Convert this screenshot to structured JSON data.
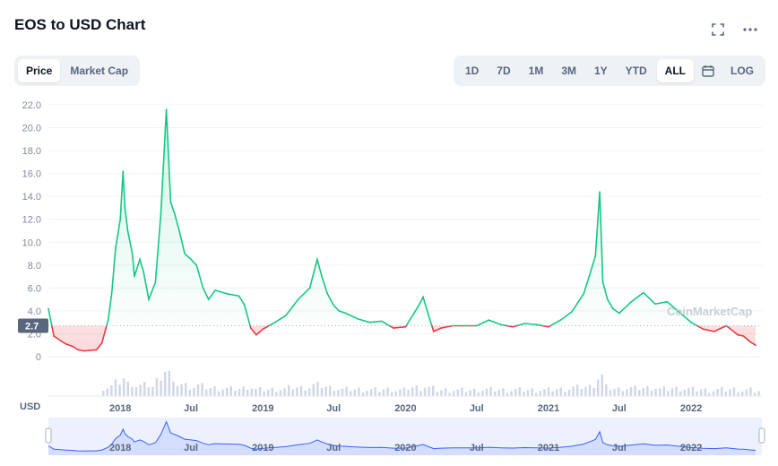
{
  "header": {
    "title": "EOS to USD Chart"
  },
  "toggle": {
    "tabs": [
      {
        "label": "Price",
        "active": true
      },
      {
        "label": "Market Cap",
        "active": false
      }
    ]
  },
  "ranges": {
    "items": [
      {
        "label": "1D",
        "active": false
      },
      {
        "label": "7D",
        "active": false
      },
      {
        "label": "1M",
        "active": false
      },
      {
        "label": "3M",
        "active": false
      },
      {
        "label": "1Y",
        "active": false
      },
      {
        "label": "YTD",
        "active": false
      },
      {
        "label": "ALL",
        "active": true
      }
    ],
    "log_label": "LOG"
  },
  "icons": {
    "fullscreen": "fullscreen-icon",
    "more": "more-icon",
    "calendar": "calendar-icon"
  },
  "currency_label": "USD",
  "watermark": "CoinMarketCap",
  "colors": {
    "up": "#16c784",
    "down": "#ea3943",
    "navigator": "#3861fb",
    "volume": "#cfd6e4"
  },
  "chart_data": {
    "type": "line",
    "reference_price": 2.7,
    "reference_label": "2.7",
    "ylim": [
      0,
      22
    ],
    "y_ticks": [
      "0",
      "2.0",
      "4.0",
      "6.0",
      "8.0",
      "10.0",
      "12.0",
      "14.0",
      "16.0",
      "18.0",
      "20.0",
      "22.0"
    ],
    "x_ticks": [
      "2018",
      "Jul",
      "2019",
      "Jul",
      "2020",
      "Jul",
      "2021",
      "Jul",
      "2022"
    ],
    "navigator_ticks": [
      "2018",
      "Jul",
      "2019",
      "Jul",
      "2020",
      "Jul",
      "2021",
      "Jul",
      "2022"
    ],
    "series": [
      {
        "x": [
          "2017-07-01",
          "2017-07-15",
          "2017-08-01",
          "2017-08-15",
          "2017-09-01",
          "2017-09-15",
          "2017-10-01",
          "2017-10-15",
          "2017-11-01",
          "2017-11-15",
          "2017-12-01",
          "2017-12-10",
          "2017-12-20",
          "2018-01-01",
          "2018-01-08",
          "2018-01-13",
          "2018-01-20",
          "2018-02-01",
          "2018-02-06",
          "2018-02-20",
          "2018-03-01",
          "2018-03-15",
          "2018-04-01",
          "2018-04-15",
          "2018-04-29",
          "2018-05-10",
          "2018-05-20",
          "2018-06-01",
          "2018-06-15",
          "2018-07-01",
          "2018-07-15",
          "2018-08-01",
          "2018-08-15",
          "2018-09-01",
          "2018-10-01",
          "2018-11-01",
          "2018-11-15",
          "2018-12-01",
          "2018-12-15",
          "2019-01-01",
          "2019-02-01",
          "2019-03-01",
          "2019-04-01",
          "2019-05-01",
          "2019-05-20",
          "2019-06-01",
          "2019-06-15",
          "2019-07-01",
          "2019-07-15",
          "2019-08-01",
          "2019-09-01",
          "2019-10-01",
          "2019-11-01",
          "2019-12-01",
          "2020-01-01",
          "2020-02-01",
          "2020-02-15",
          "2020-03-01",
          "2020-03-13",
          "2020-04-01",
          "2020-05-01",
          "2020-06-01",
          "2020-07-01",
          "2020-08-01",
          "2020-09-01",
          "2020-10-01",
          "2020-11-01",
          "2020-12-01",
          "2021-01-01",
          "2021-02-01",
          "2021-03-01",
          "2021-04-01",
          "2021-04-15",
          "2021-05-01",
          "2021-05-12",
          "2021-05-20",
          "2021-06-01",
          "2021-06-15",
          "2021-07-01",
          "2021-08-01",
          "2021-09-01",
          "2021-10-01",
          "2021-11-01",
          "2021-12-01",
          "2022-01-01",
          "2022-02-01",
          "2022-03-01",
          "2022-04-01",
          "2022-05-01",
          "2022-05-15",
          "2022-06-01",
          "2022-06-15"
        ],
        "values": [
          4.2,
          1.8,
          1.4,
          1.1,
          0.9,
          0.6,
          0.5,
          0.55,
          0.6,
          1.2,
          3.2,
          5.5,
          9.5,
          12.0,
          16.2,
          13.0,
          11.0,
          9.0,
          7.0,
          8.5,
          7.5,
          5.0,
          6.5,
          12.5,
          21.6,
          13.5,
          12.5,
          11.0,
          9.0,
          8.5,
          8.0,
          6.0,
          5.0,
          5.8,
          5.5,
          5.3,
          4.5,
          2.5,
          1.9,
          2.4,
          3.0,
          3.6,
          5.0,
          6.0,
          8.5,
          7.0,
          5.5,
          4.5,
          4.0,
          3.8,
          3.3,
          3.0,
          3.1,
          2.5,
          2.6,
          4.3,
          5.2,
          3.5,
          2.2,
          2.5,
          2.7,
          2.7,
          2.7,
          3.2,
          2.8,
          2.6,
          2.9,
          2.8,
          2.6,
          3.2,
          3.9,
          5.5,
          7.0,
          8.8,
          14.4,
          6.5,
          5.0,
          4.2,
          3.8,
          4.8,
          5.6,
          4.6,
          4.8,
          3.9,
          3.0,
          2.4,
          2.2,
          2.7,
          1.9,
          1.8,
          1.3,
          1.0
        ]
      }
    ]
  }
}
